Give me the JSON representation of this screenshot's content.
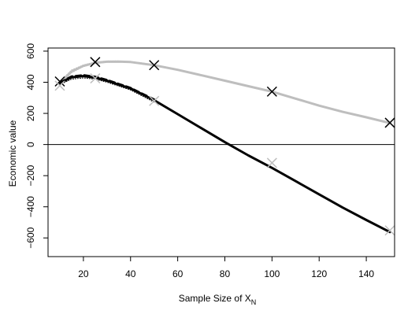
{
  "chart_data": {
    "type": "line",
    "title": "",
    "xlabel": "Sample Size of  X",
    "xlabel_subscript": "N",
    "ylabel": "Economic value",
    "xlim": [
      5,
      152
    ],
    "ylim": [
      -720,
      620
    ],
    "x_ticks": [
      20,
      40,
      60,
      80,
      100,
      120,
      140
    ],
    "y_ticks": [
      600,
      400,
      200,
      0,
      -200,
      -400,
      -600
    ],
    "y_tick_labels": [
      "600",
      "400",
      "200",
      "0",
      "−200",
      "−400",
      "−600"
    ],
    "hline": 0,
    "grid": false,
    "legend": "none",
    "series": [
      {
        "color": "#bebebe",
        "style": "solid-thick",
        "x": [
          10,
          15,
          20,
          25,
          30,
          35,
          40,
          50,
          60,
          70,
          80,
          90,
          100,
          110,
          120,
          130,
          140,
          150
        ],
        "values": [
          395,
          470,
          505,
          525,
          532,
          533,
          530,
          510,
          480,
          445,
          410,
          375,
          340,
          295,
          250,
          210,
          175,
          138
        ]
      },
      {
        "color": "#bebebe",
        "style": "dotted",
        "x": [
          10,
          15,
          20,
          25,
          30,
          35,
          40,
          50
        ],
        "values": [
          385,
          460,
          500,
          520,
          528,
          530,
          527,
          505
        ]
      },
      {
        "color": "#bebebe",
        "style": "dotted",
        "x": [
          10,
          15,
          20,
          25,
          30,
          35,
          40,
          50
        ],
        "values": [
          405,
          480,
          512,
          530,
          537,
          537,
          533,
          515
        ]
      },
      {
        "color": "#000000",
        "style": "solid-thick",
        "x": [
          10,
          15,
          20,
          25,
          30,
          35,
          40,
          50,
          60,
          70,
          80,
          90,
          100,
          110,
          120,
          130,
          140,
          150
        ],
        "values": [
          395,
          432,
          440,
          430,
          410,
          385,
          360,
          285,
          195,
          105,
          15,
          -70,
          -150,
          -235,
          -320,
          -405,
          -485,
          -562
        ]
      },
      {
        "color": "#000000",
        "style": "dashed",
        "x": [
          10,
          15,
          20,
          25,
          30,
          35,
          40,
          50
        ],
        "values": [
          398,
          438,
          446,
          436,
          415,
          390,
          364,
          290
        ]
      },
      {
        "color": "#000000",
        "style": "dotted",
        "x": [
          10,
          15,
          20,
          25,
          30,
          35,
          40,
          50
        ],
        "values": [
          385,
          420,
          428,
          420,
          400,
          375,
          350,
          272
        ]
      }
    ],
    "markers": [
      {
        "color": "#000000",
        "shape": "x",
        "points": [
          [
            10,
            405
          ],
          [
            25,
            530
          ],
          [
            50,
            510
          ],
          [
            100,
            340
          ],
          [
            150,
            140
          ]
        ]
      },
      {
        "color": "#bebebe",
        "shape": "x",
        "points": [
          [
            10,
            378
          ],
          [
            25,
            425
          ],
          [
            50,
            280
          ],
          [
            100,
            -118
          ],
          [
            150,
            -552
          ]
        ]
      }
    ]
  }
}
